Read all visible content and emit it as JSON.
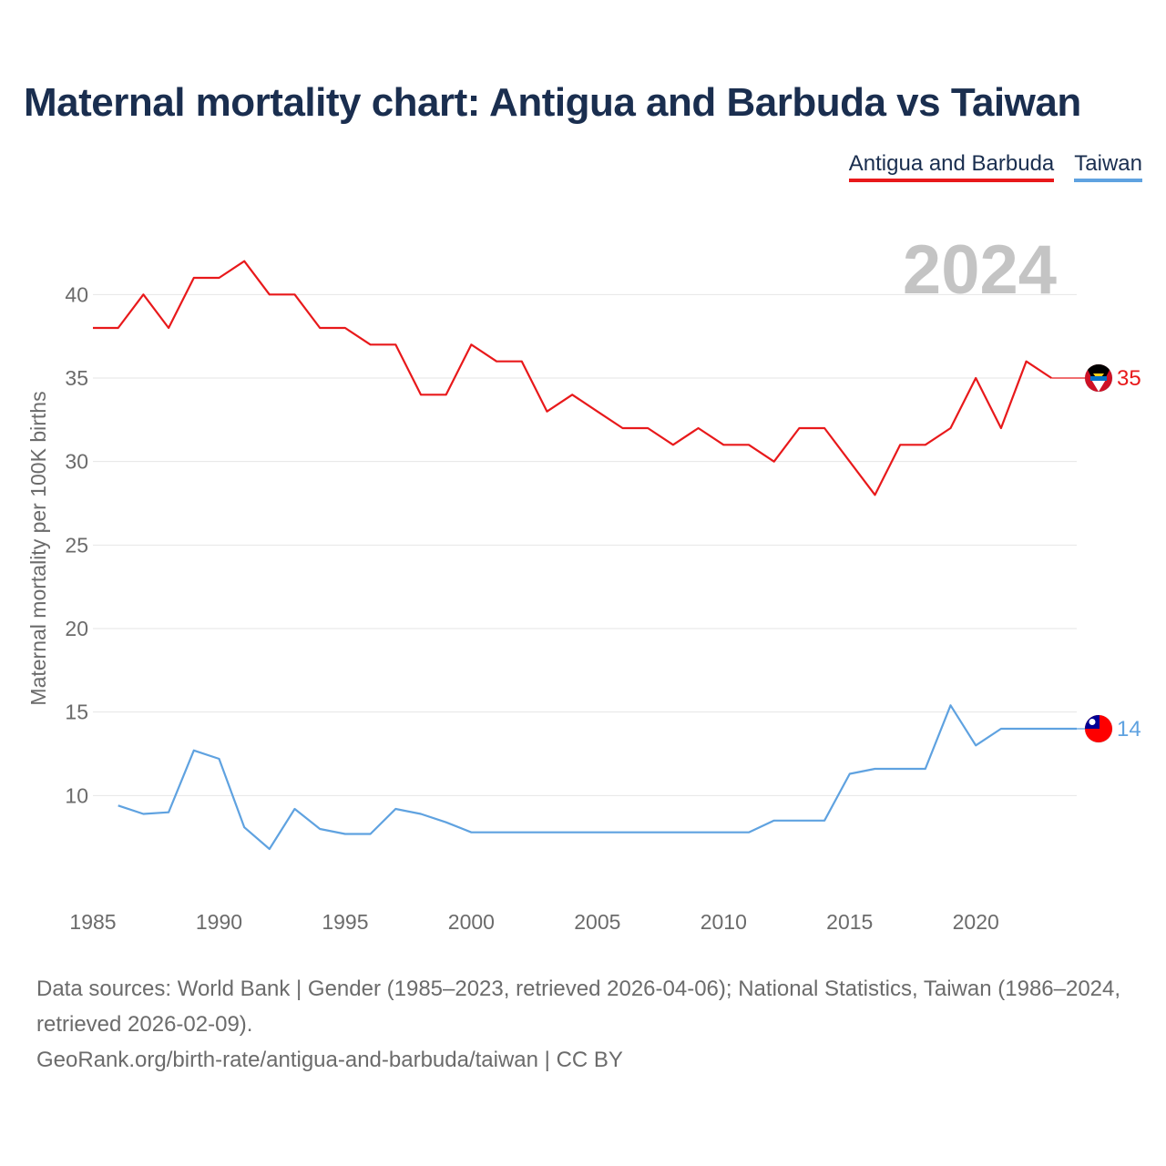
{
  "chart_data": {
    "type": "line",
    "title": "Maternal mortality chart: Antigua and Barbuda vs Taiwan",
    "xlabel": "",
    "ylabel": "Maternal mortality per 100K births",
    "xlim": [
      1985,
      2024
    ],
    "ylim": [
      5,
      44
    ],
    "x_ticks": [
      "1985",
      "1990",
      "1995",
      "2000",
      "2005",
      "2010",
      "2015",
      "2020"
    ],
    "y_ticks": [
      "10",
      "15",
      "20",
      "25",
      "30",
      "35",
      "40"
    ],
    "watermark_year": "2024",
    "series": [
      {
        "name": "Antigua and Barbuda",
        "color": "#e8191b",
        "end_label": "35",
        "flag": "antigua-and-barbuda-flag-icon",
        "points": [
          [
            1985,
            38
          ],
          [
            1986,
            38
          ],
          [
            1987,
            40
          ],
          [
            1988,
            38
          ],
          [
            1989,
            41
          ],
          [
            1990,
            41
          ],
          [
            1991,
            42
          ],
          [
            1992,
            40
          ],
          [
            1993,
            40
          ],
          [
            1994,
            38
          ],
          [
            1995,
            38
          ],
          [
            1996,
            37
          ],
          [
            1997,
            37
          ],
          [
            1998,
            34
          ],
          [
            1999,
            34
          ],
          [
            2000,
            37
          ],
          [
            2001,
            36
          ],
          [
            2002,
            36
          ],
          [
            2003,
            33
          ],
          [
            2004,
            34
          ],
          [
            2005,
            33
          ],
          [
            2006,
            32
          ],
          [
            2007,
            32
          ],
          [
            2008,
            31
          ],
          [
            2009,
            32
          ],
          [
            2010,
            31
          ],
          [
            2011,
            31
          ],
          [
            2012,
            30
          ],
          [
            2013,
            32
          ],
          [
            2014,
            32
          ],
          [
            2015,
            30
          ],
          [
            2016,
            28
          ],
          [
            2017,
            31
          ],
          [
            2018,
            31
          ],
          [
            2019,
            32
          ],
          [
            2020,
            35
          ],
          [
            2021,
            32
          ],
          [
            2022,
            36
          ],
          [
            2023,
            35
          ]
        ],
        "end_value": 35
      },
      {
        "name": "Taiwan",
        "color": "#5fa2e0",
        "end_label": "14",
        "flag": "taiwan-flag-icon",
        "points": [
          [
            1986,
            9.4
          ],
          [
            1987,
            8.9
          ],
          [
            1988,
            9.0
          ],
          [
            1989,
            12.7
          ],
          [
            1990,
            12.2
          ],
          [
            1991,
            8.1
          ],
          [
            1992,
            6.8
          ],
          [
            1993,
            9.2
          ],
          [
            1994,
            8.0
          ],
          [
            1995,
            7.7
          ],
          [
            1996,
            7.7
          ],
          [
            1997,
            9.2
          ],
          [
            1998,
            8.9
          ],
          [
            1999,
            8.4
          ],
          [
            2000,
            7.8
          ],
          [
            2001,
            7.8
          ],
          [
            2002,
            7.8
          ],
          [
            2003,
            7.8
          ],
          [
            2004,
            7.8
          ],
          [
            2005,
            7.8
          ],
          [
            2006,
            7.8
          ],
          [
            2007,
            7.8
          ],
          [
            2008,
            7.8
          ],
          [
            2009,
            7.8
          ],
          [
            2010,
            7.8
          ],
          [
            2011,
            7.8
          ],
          [
            2012,
            8.5
          ],
          [
            2013,
            8.5
          ],
          [
            2014,
            8.5
          ],
          [
            2015,
            11.3
          ],
          [
            2016,
            11.6
          ],
          [
            2017,
            11.6
          ],
          [
            2018,
            11.6
          ],
          [
            2019,
            15.4
          ],
          [
            2020,
            13.0
          ],
          [
            2021,
            14.0
          ],
          [
            2022,
            14.0
          ],
          [
            2023,
            14.0
          ],
          [
            2024,
            14.0
          ]
        ],
        "end_value": 14
      }
    ]
  },
  "legend": {
    "antigua_label": "Antigua and Barbuda",
    "taiwan_label": "Taiwan"
  },
  "footer": {
    "sources": "Data sources: World Bank | Gender (1985–2023, retrieved 2026-04-06); National Statistics, Taiwan (1986–2024, retrieved 2026-02-09).",
    "credit": "GeoRank.org/birth-rate/antigua-and-barbuda/taiwan | CC BY"
  }
}
